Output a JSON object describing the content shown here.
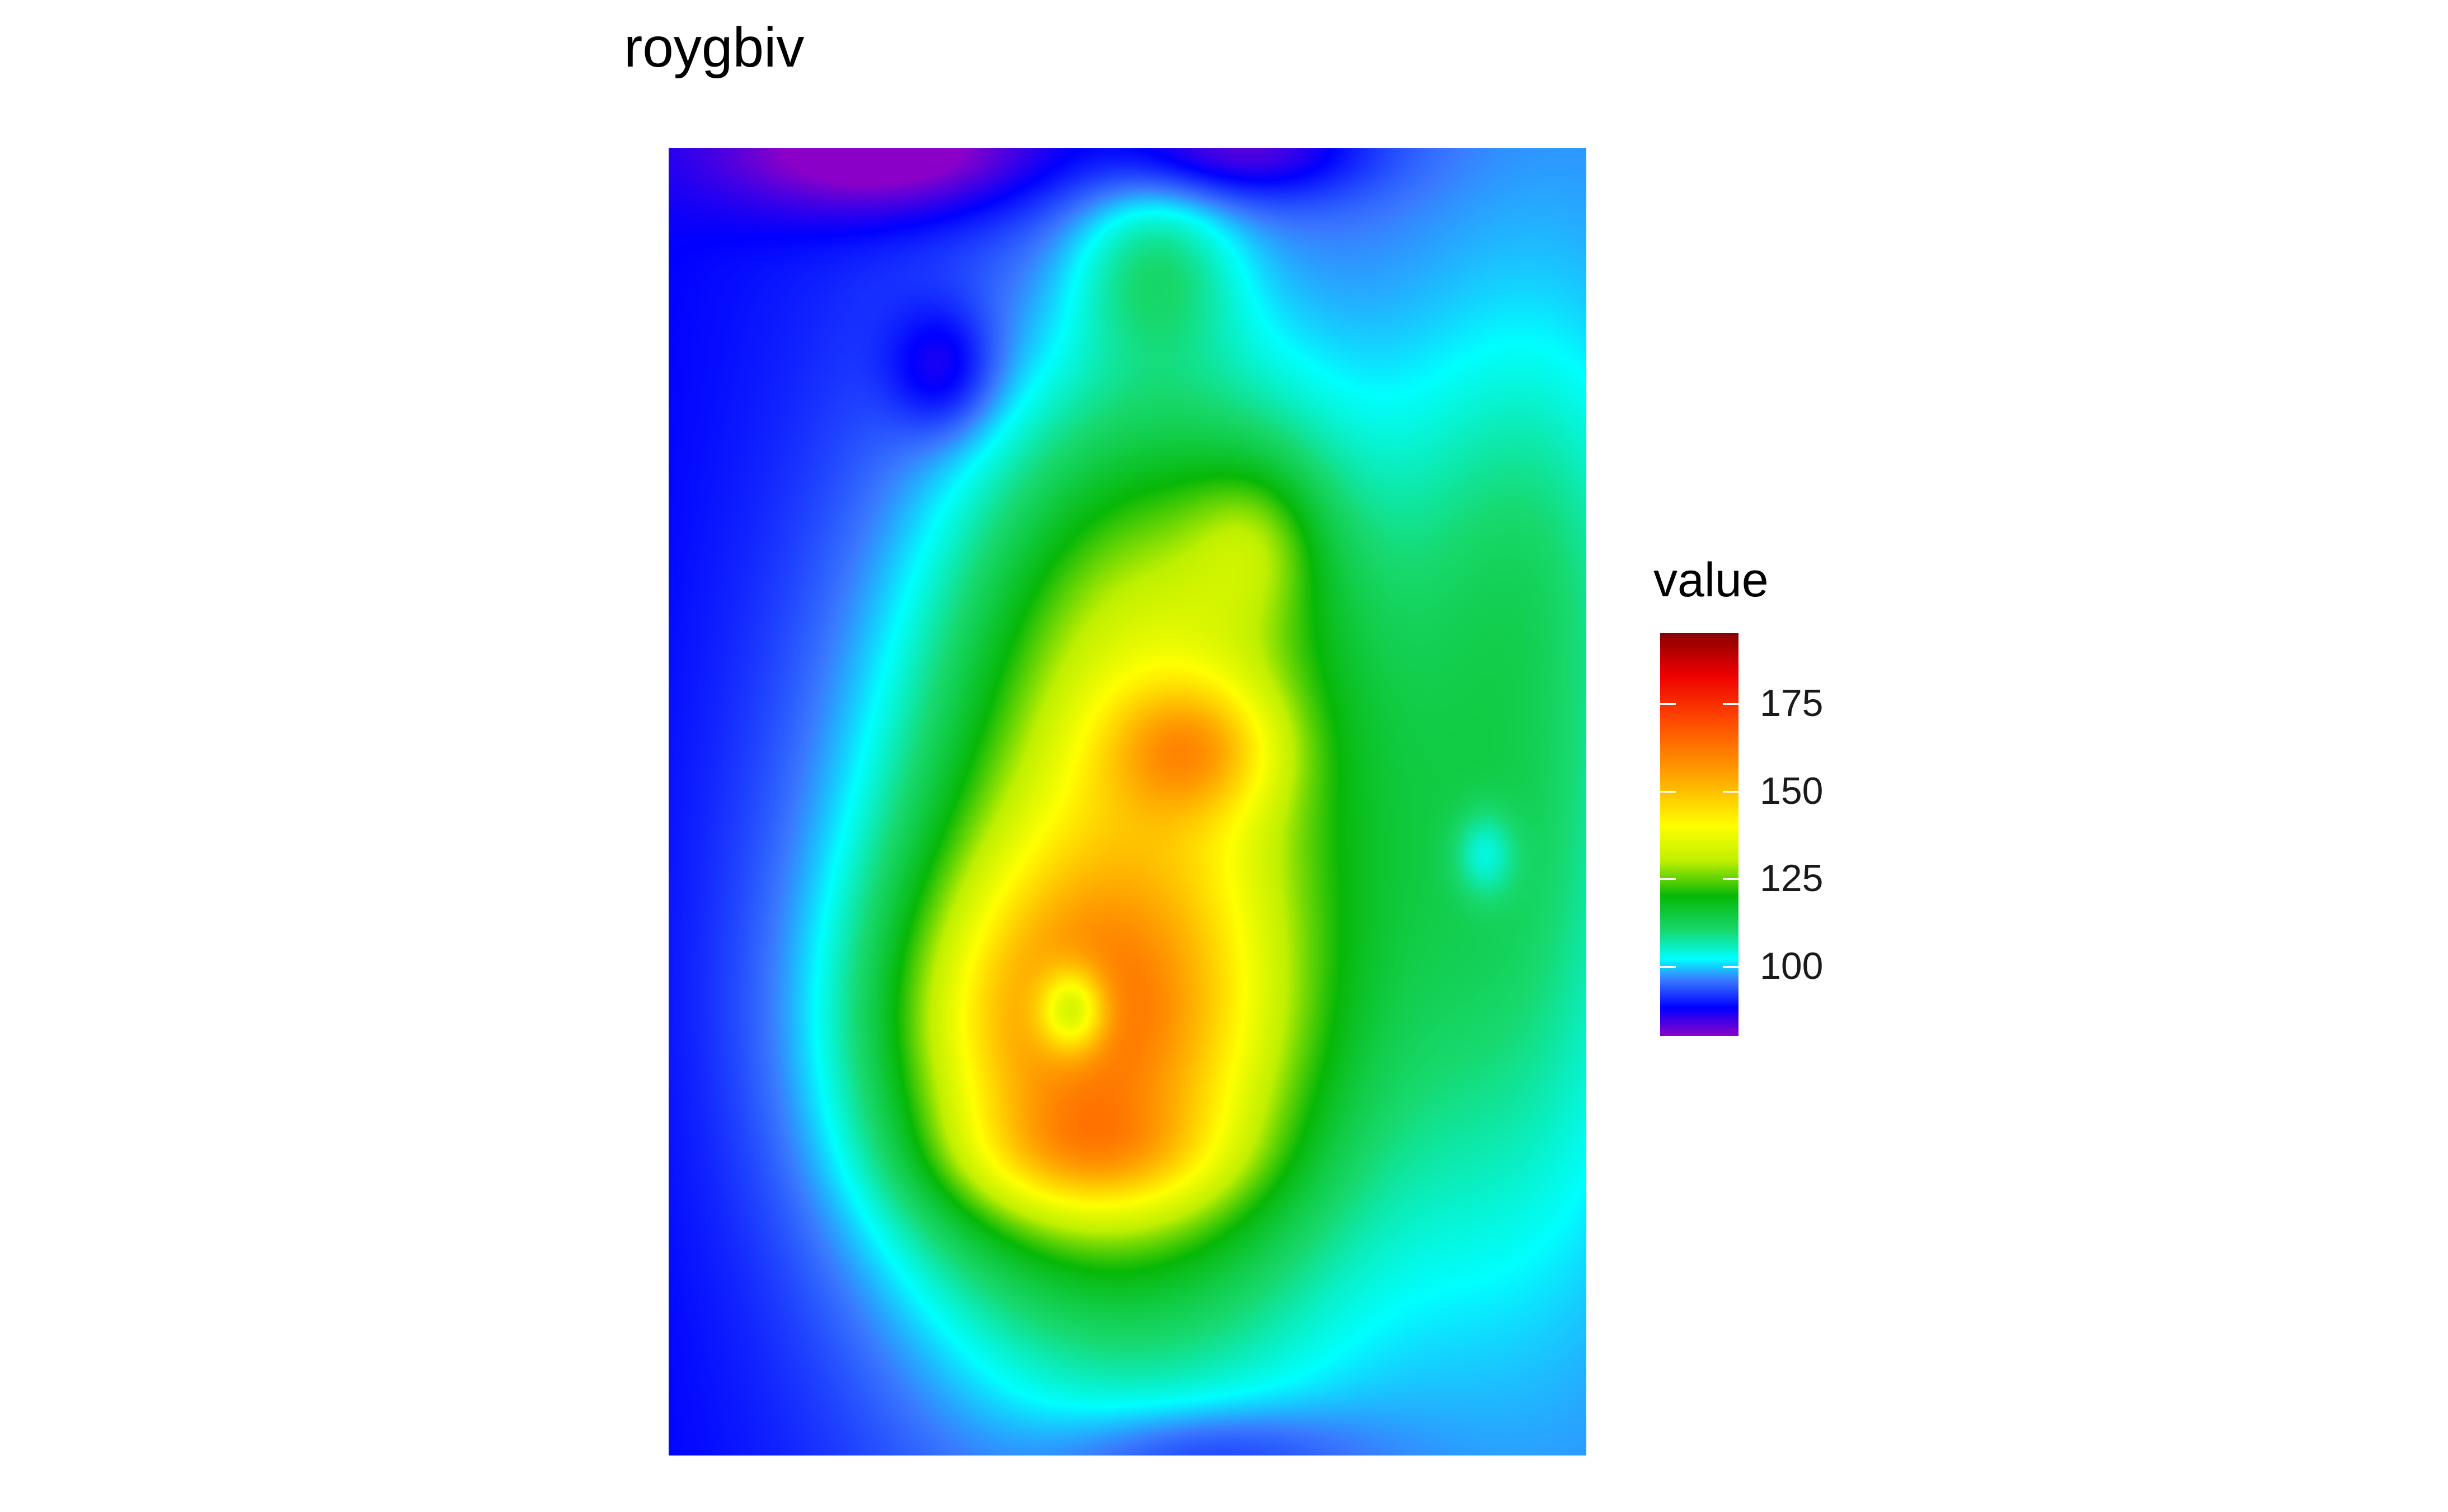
{
  "chart_data": {
    "type": "heatmap",
    "title": "roygbiv",
    "xlabel": "",
    "ylabel": "",
    "palette_name": "roygbiv",
    "legend": {
      "title": "value",
      "position": "right",
      "range": [
        80,
        195
      ],
      "ticks": [
        100,
        125,
        150,
        175
      ],
      "tick_labels": [
        "100",
        "125",
        "150",
        "175"
      ]
    },
    "color_scale": [
      {
        "value": 80,
        "color": "#8b00c8"
      },
      {
        "value": 88,
        "color": "#0000ff"
      },
      {
        "value": 96,
        "color": "#3a7bff"
      },
      {
        "value": 102,
        "color": "#00ffff"
      },
      {
        "value": 110,
        "color": "#17d96f"
      },
      {
        "value": 120,
        "color": "#07b807"
      },
      {
        "value": 130,
        "color": "#bff000"
      },
      {
        "value": 140,
        "color": "#ffff00"
      },
      {
        "value": 155,
        "color": "#ffa000"
      },
      {
        "value": 170,
        "color": "#ff4a00"
      },
      {
        "value": 183,
        "color": "#ee0000"
      },
      {
        "value": 195,
        "color": "#8b0000"
      }
    ],
    "grid": false,
    "grid_shape": [
      61,
      87
    ],
    "values_note_min": 80,
    "values_note_max": 195
  }
}
